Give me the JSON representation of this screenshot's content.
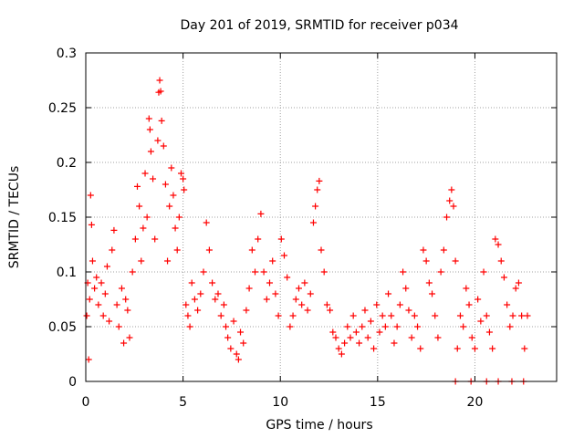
{
  "chart_data": {
    "type": "scatter",
    "title": "Day 201 of 2019, SRMTID for receiver p034",
    "xlabel": "GPS time / hours",
    "ylabel": "SRMTID / TECUs",
    "xlim": [
      0,
      24.2
    ],
    "ylim": [
      0,
      0.3
    ],
    "x_ticks": [
      0,
      5,
      10,
      15,
      20
    ],
    "x_tick_labels": [
      "0",
      "5",
      "10",
      "15",
      "20"
    ],
    "y_ticks": [
      0,
      0.05,
      0.1,
      0.15,
      0.2,
      0.25,
      0.3
    ],
    "y_tick_labels": [
      "0",
      "0.05",
      "0.1",
      "0.15",
      "0.2",
      "0.25",
      "0.3"
    ],
    "grid": true,
    "marker": "+",
    "color": "#ff0000",
    "series": [
      {
        "name": "SRMTID",
        "points": [
          [
            0.05,
            0.06
          ],
          [
            0.1,
            0.09
          ],
          [
            0.15,
            0.02
          ],
          [
            0.2,
            0.075
          ],
          [
            0.25,
            0.17
          ],
          [
            0.3,
            0.143
          ],
          [
            0.35,
            0.11
          ],
          [
            0.45,
            0.085
          ],
          [
            0.55,
            0.095
          ],
          [
            0.65,
            0.07
          ],
          [
            0.8,
            0.09
          ],
          [
            0.9,
            0.06
          ],
          [
            1.0,
            0.08
          ],
          [
            1.1,
            0.105
          ],
          [
            1.2,
            0.055
          ],
          [
            1.35,
            0.12
          ],
          [
            1.45,
            0.138
          ],
          [
            1.6,
            0.07
          ],
          [
            1.7,
            0.05
          ],
          [
            1.85,
            0.085
          ],
          [
            1.95,
            0.035
          ],
          [
            2.05,
            0.075
          ],
          [
            2.15,
            0.065
          ],
          [
            2.25,
            0.04
          ],
          [
            2.4,
            0.1
          ],
          [
            2.55,
            0.13
          ],
          [
            2.65,
            0.178
          ],
          [
            2.75,
            0.16
          ],
          [
            2.85,
            0.11
          ],
          [
            2.95,
            0.14
          ],
          [
            3.05,
            0.19
          ],
          [
            3.15,
            0.15
          ],
          [
            3.25,
            0.24
          ],
          [
            3.3,
            0.23
          ],
          [
            3.35,
            0.21
          ],
          [
            3.45,
            0.185
          ],
          [
            3.55,
            0.13
          ],
          [
            3.7,
            0.22
          ],
          [
            3.75,
            0.264
          ],
          [
            3.8,
            0.275
          ],
          [
            3.85,
            0.265
          ],
          [
            3.9,
            0.238
          ],
          [
            4.0,
            0.215
          ],
          [
            4.1,
            0.18
          ],
          [
            4.2,
            0.11
          ],
          [
            4.3,
            0.16
          ],
          [
            4.4,
            0.195
          ],
          [
            4.5,
            0.17
          ],
          [
            4.6,
            0.14
          ],
          [
            4.7,
            0.12
          ],
          [
            4.8,
            0.15
          ],
          [
            4.9,
            0.19
          ],
          [
            5.0,
            0.185
          ],
          [
            5.05,
            0.175
          ],
          [
            5.15,
            0.07
          ],
          [
            5.25,
            0.06
          ],
          [
            5.35,
            0.05
          ],
          [
            5.45,
            0.09
          ],
          [
            5.6,
            0.075
          ],
          [
            5.75,
            0.065
          ],
          [
            5.9,
            0.08
          ],
          [
            6.05,
            0.1
          ],
          [
            6.2,
            0.145
          ],
          [
            6.35,
            0.12
          ],
          [
            6.5,
            0.09
          ],
          [
            6.65,
            0.075
          ],
          [
            6.8,
            0.08
          ],
          [
            6.95,
            0.06
          ],
          [
            7.1,
            0.07
          ],
          [
            7.2,
            0.05
          ],
          [
            7.3,
            0.04
          ],
          [
            7.45,
            0.03
          ],
          [
            7.6,
            0.055
          ],
          [
            7.75,
            0.025
          ],
          [
            7.85,
            0.02
          ],
          [
            7.95,
            0.045
          ],
          [
            8.1,
            0.035
          ],
          [
            8.25,
            0.065
          ],
          [
            8.4,
            0.085
          ],
          [
            8.55,
            0.12
          ],
          [
            8.7,
            0.1
          ],
          [
            8.85,
            0.13
          ],
          [
            9.0,
            0.153
          ],
          [
            9.15,
            0.1
          ],
          [
            9.3,
            0.075
          ],
          [
            9.45,
            0.09
          ],
          [
            9.6,
            0.11
          ],
          [
            9.75,
            0.08
          ],
          [
            9.9,
            0.06
          ],
          [
            10.05,
            0.13
          ],
          [
            10.2,
            0.115
          ],
          [
            10.35,
            0.095
          ],
          [
            10.5,
            0.05
          ],
          [
            10.65,
            0.06
          ],
          [
            10.8,
            0.075
          ],
          [
            10.95,
            0.085
          ],
          [
            11.1,
            0.07
          ],
          [
            11.25,
            0.09
          ],
          [
            11.4,
            0.065
          ],
          [
            11.55,
            0.08
          ],
          [
            11.7,
            0.145
          ],
          [
            11.8,
            0.16
          ],
          [
            11.9,
            0.175
          ],
          [
            12.0,
            0.183
          ],
          [
            12.1,
            0.12
          ],
          [
            12.25,
            0.1
          ],
          [
            12.4,
            0.07
          ],
          [
            12.55,
            0.065
          ],
          [
            12.7,
            0.045
          ],
          [
            12.85,
            0.04
          ],
          [
            13.0,
            0.03
          ],
          [
            13.15,
            0.025
          ],
          [
            13.3,
            0.035
          ],
          [
            13.45,
            0.05
          ],
          [
            13.6,
            0.04
          ],
          [
            13.75,
            0.06
          ],
          [
            13.9,
            0.045
          ],
          [
            14.05,
            0.035
          ],
          [
            14.2,
            0.05
          ],
          [
            14.35,
            0.065
          ],
          [
            14.5,
            0.04
          ],
          [
            14.65,
            0.055
          ],
          [
            14.8,
            0.03
          ],
          [
            14.95,
            0.07
          ],
          [
            15.1,
            0.045
          ],
          [
            15.25,
            0.06
          ],
          [
            15.4,
            0.05
          ],
          [
            15.55,
            0.08
          ],
          [
            15.7,
            0.06
          ],
          [
            15.85,
            0.035
          ],
          [
            16.0,
            0.05
          ],
          [
            16.15,
            0.07
          ],
          [
            16.3,
            0.1
          ],
          [
            16.45,
            0.085
          ],
          [
            16.6,
            0.065
          ],
          [
            16.75,
            0.04
          ],
          [
            16.9,
            0.06
          ],
          [
            17.05,
            0.05
          ],
          [
            17.2,
            0.03
          ],
          [
            17.35,
            0.12
          ],
          [
            17.5,
            0.11
          ],
          [
            17.65,
            0.09
          ],
          [
            17.8,
            0.08
          ],
          [
            17.95,
            0.06
          ],
          [
            18.1,
            0.04
          ],
          [
            18.25,
            0.1
          ],
          [
            18.4,
            0.12
          ],
          [
            18.55,
            0.15
          ],
          [
            18.7,
            0.165
          ],
          [
            18.8,
            0.175
          ],
          [
            18.9,
            0.16
          ],
          [
            19.0,
            0.11
          ],
          [
            19.1,
            0.03
          ],
          [
            19.25,
            0.06
          ],
          [
            19.4,
            0.05
          ],
          [
            19.55,
            0.085
          ],
          [
            19.7,
            0.07
          ],
          [
            19.85,
            0.04
          ],
          [
            20.0,
            0.03
          ],
          [
            20.15,
            0.075
          ],
          [
            20.3,
            0.055
          ],
          [
            20.45,
            0.1
          ],
          [
            20.6,
            0.06
          ],
          [
            20.75,
            0.045
          ],
          [
            20.9,
            0.03
          ],
          [
            21.05,
            0.13
          ],
          [
            21.2,
            0.125
          ],
          [
            21.35,
            0.11
          ],
          [
            21.5,
            0.095
          ],
          [
            21.65,
            0.07
          ],
          [
            21.8,
            0.05
          ],
          [
            21.95,
            0.06
          ],
          [
            22.1,
            0.085
          ],
          [
            22.25,
            0.09
          ],
          [
            22.4,
            0.06
          ],
          [
            22.55,
            0.03
          ],
          [
            22.7,
            0.06
          ]
        ]
      },
      {
        "name": "zero-level markers",
        "points": [
          [
            19.0,
            0
          ],
          [
            19.8,
            0
          ],
          [
            20.6,
            0
          ],
          [
            21.2,
            0
          ],
          [
            21.9,
            0
          ],
          [
            22.5,
            0
          ]
        ]
      }
    ]
  }
}
